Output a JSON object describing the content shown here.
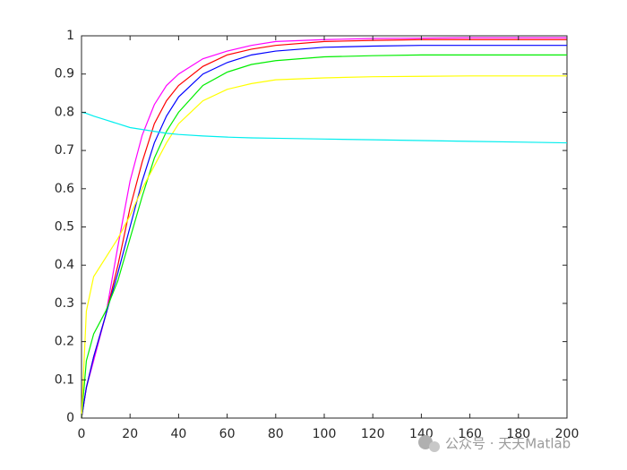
{
  "chart_data": {
    "type": "line",
    "x": [
      0,
      2,
      5,
      10,
      15,
      20,
      25,
      30,
      35,
      40,
      50,
      60,
      70,
      80,
      100,
      120,
      140,
      160,
      180,
      200
    ],
    "series": [
      {
        "color": "#ff00ff",
        "values": [
          0,
          0.08,
          0.15,
          0.27,
          0.45,
          0.62,
          0.74,
          0.82,
          0.87,
          0.9,
          0.94,
          0.96,
          0.975,
          0.985,
          0.99,
          0.993,
          0.994,
          0.995,
          0.995,
          0.995
        ]
      },
      {
        "color": "#ff0000",
        "values": [
          0,
          0.08,
          0.16,
          0.27,
          0.4,
          0.55,
          0.67,
          0.77,
          0.83,
          0.87,
          0.92,
          0.95,
          0.965,
          0.975,
          0.985,
          0.988,
          0.99,
          0.99,
          0.99,
          0.99
        ]
      },
      {
        "color": "#0000ff",
        "values": [
          0,
          0.08,
          0.16,
          0.27,
          0.38,
          0.5,
          0.62,
          0.72,
          0.79,
          0.84,
          0.9,
          0.93,
          0.95,
          0.96,
          0.97,
          0.973,
          0.975,
          0.975,
          0.975,
          0.975
        ]
      },
      {
        "color": "#00ee00",
        "values": [
          0,
          0.15,
          0.22,
          0.28,
          0.36,
          0.47,
          0.58,
          0.68,
          0.75,
          0.8,
          0.87,
          0.905,
          0.925,
          0.935,
          0.945,
          0.948,
          0.95,
          0.95,
          0.95,
          0.95
        ]
      },
      {
        "color": "#ffff00",
        "values": [
          0,
          0.28,
          0.37,
          0.42,
          0.47,
          0.53,
          0.6,
          0.66,
          0.72,
          0.77,
          0.83,
          0.86,
          0.875,
          0.885,
          0.89,
          0.893,
          0.894,
          0.895,
          0.895,
          0.895
        ]
      },
      {
        "color": "#00eeee",
        "values": [
          0.8,
          0.797,
          0.79,
          0.78,
          0.77,
          0.76,
          0.755,
          0.75,
          0.745,
          0.742,
          0.738,
          0.735,
          0.733,
          0.732,
          0.73,
          0.728,
          0.726,
          0.724,
          0.722,
          0.72
        ]
      }
    ],
    "xlim": [
      0,
      200
    ],
    "xticks": [
      0,
      20,
      40,
      60,
      80,
      100,
      120,
      140,
      160,
      180,
      200
    ],
    "ylim": [
      0,
      1
    ],
    "yticks": [
      0,
      0.1,
      0.2,
      0.3,
      0.4,
      0.5,
      0.6,
      0.7,
      0.8,
      0.9,
      1
    ],
    "grid": false,
    "watermark": "公众号 · 天天Matlab"
  }
}
